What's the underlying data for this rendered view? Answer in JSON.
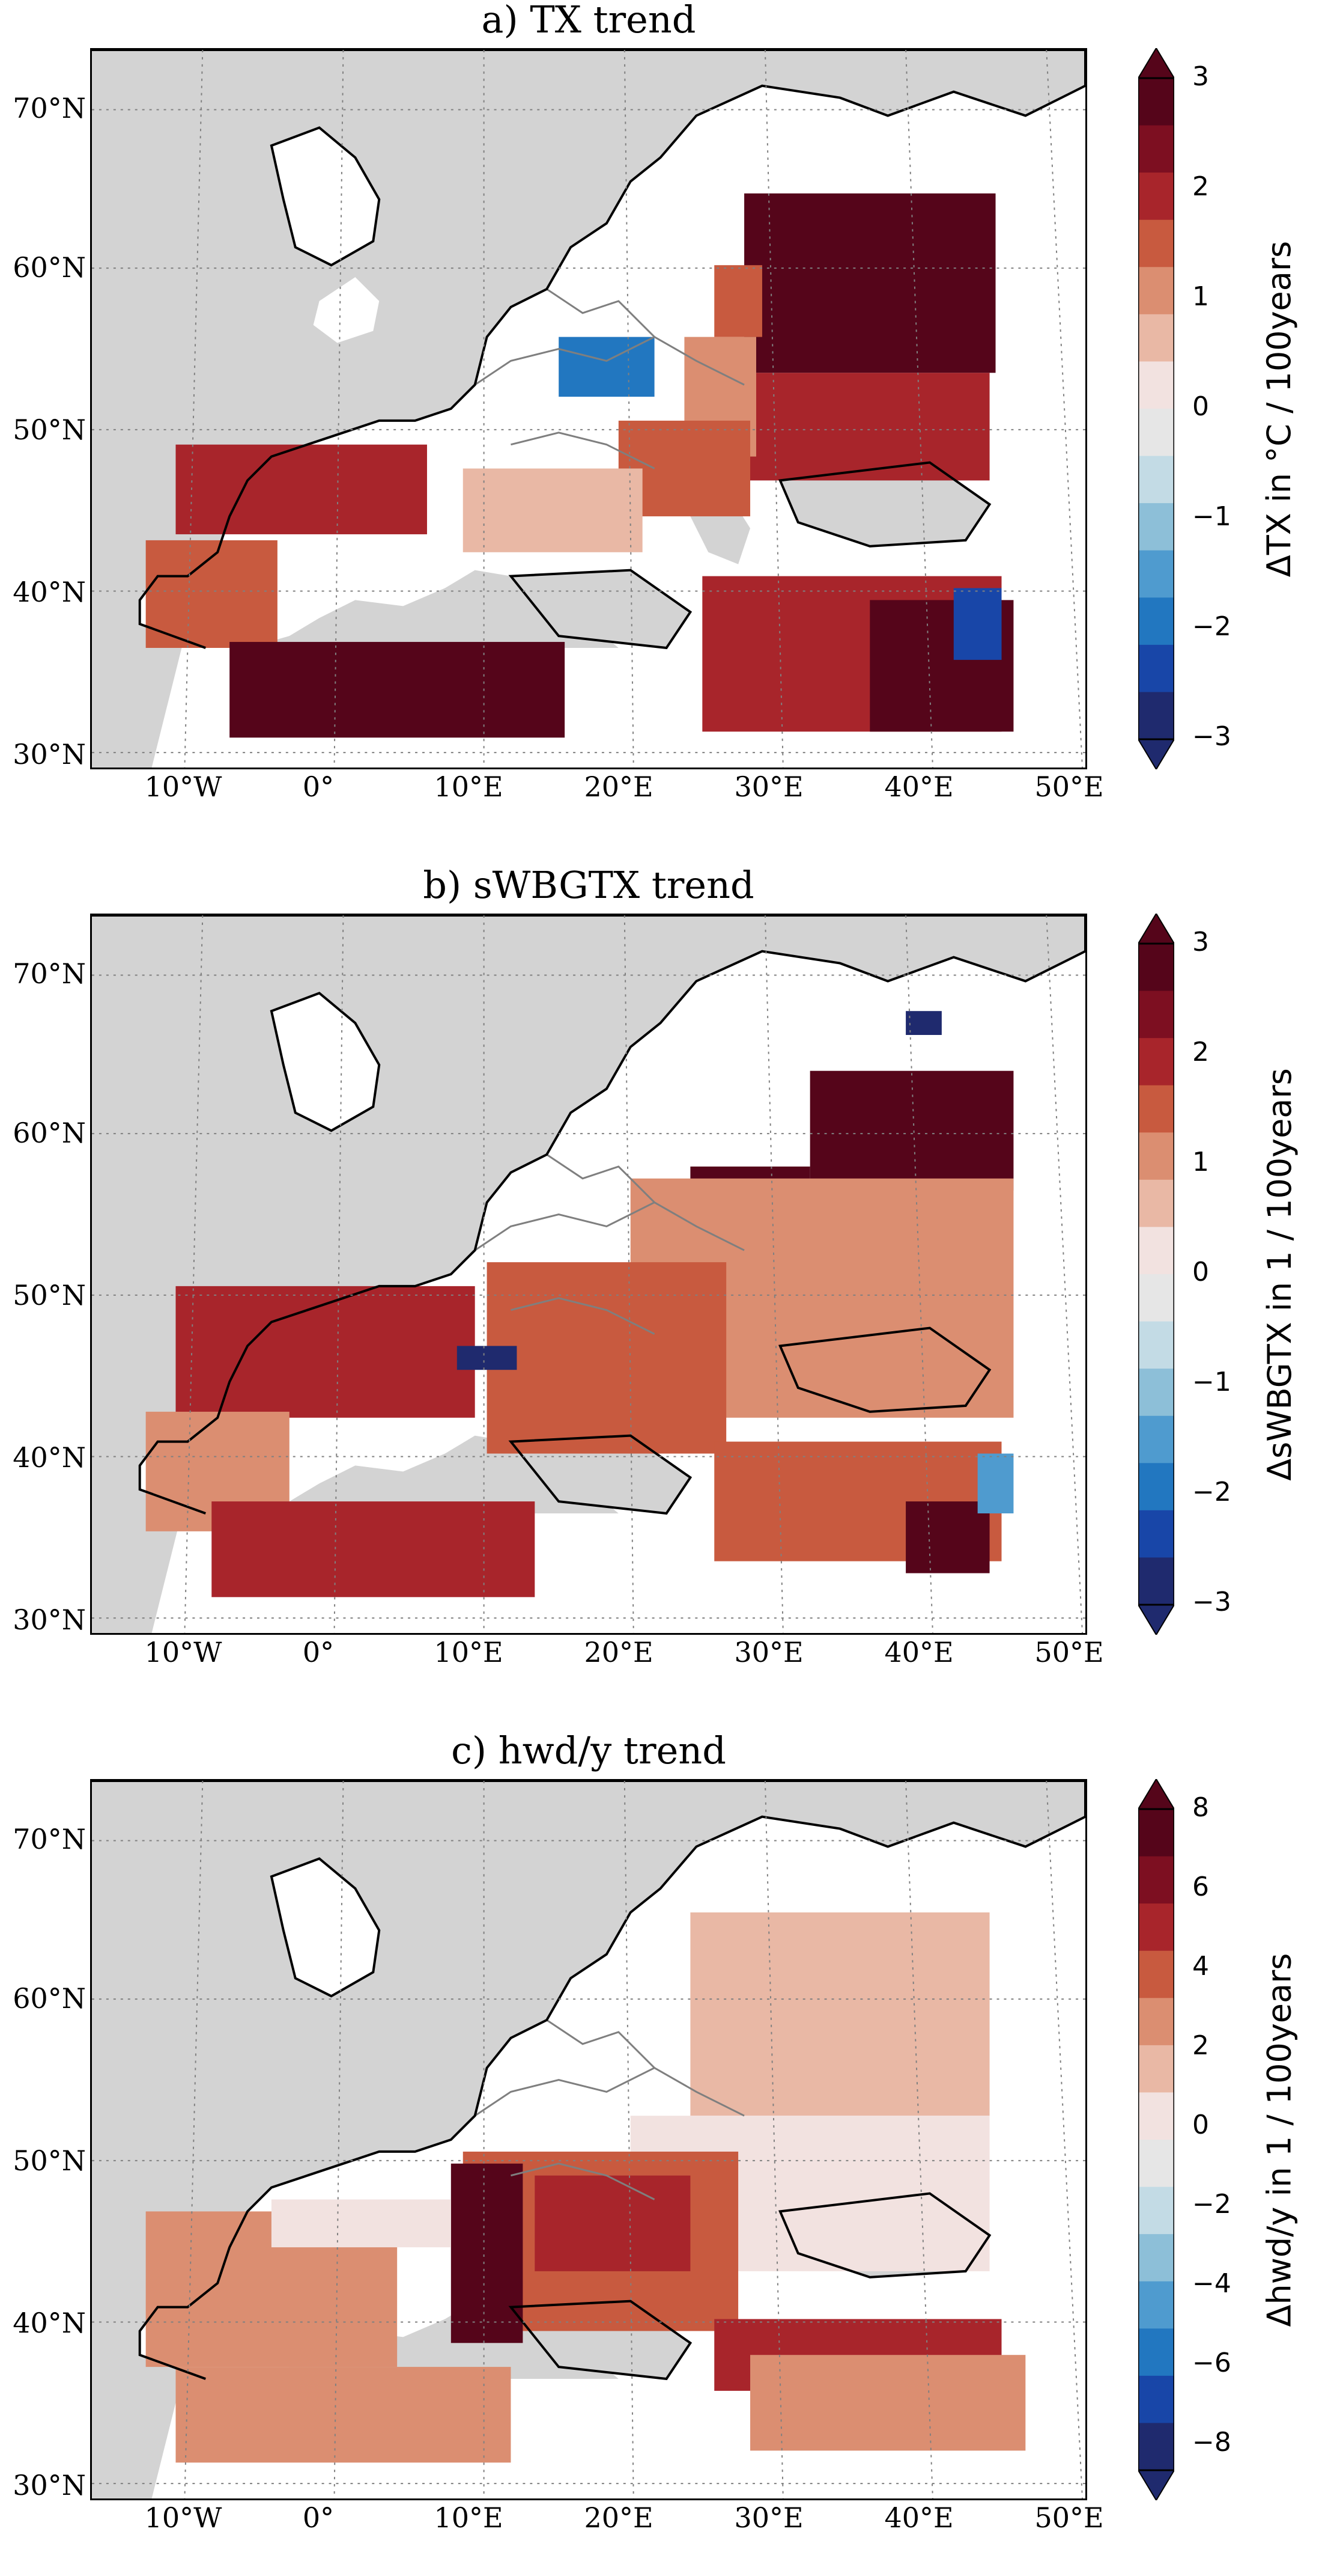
{
  "colors": {
    "ocean": "#d3d3d3",
    "land": "#ffffff",
    "coast": "#000000",
    "border": "#7f7f7f",
    "grid": "#808080"
  },
  "colorscale": [
    "#1f2a6e",
    "#1846a8",
    "#2277c0",
    "#4f9bcf",
    "#8dbfd8",
    "#c3dbe5",
    "#e6e6e6",
    "#f2e2e0",
    "#e9b8a5",
    "#db8e71",
    "#c85a3f",
    "#a8252b",
    "#7d0f21",
    "#55051a"
  ],
  "panels": [
    {
      "title": "a) TX trend",
      "cbar_ticks": [
        "3",
        "2",
        "1",
        "0",
        "−1",
        "−2",
        "−3"
      ],
      "cbar_label": "ΔTX in °C / 100years",
      "lat_labels": [
        "70°N",
        "60°N",
        "50°N",
        "40°N",
        "30°N"
      ],
      "lon_labels": [
        "10°W",
        "0°",
        "10°E",
        "20°E",
        "30°E",
        "40°E",
        "50°E"
      ]
    },
    {
      "title": "b) sWBGTX trend",
      "cbar_ticks": [
        "3",
        "2",
        "1",
        "0",
        "−1",
        "−2",
        "−3"
      ],
      "cbar_label": "ΔsWBGTX in 1 / 100years",
      "lat_labels": [
        "70°N",
        "60°N",
        "50°N",
        "40°N",
        "30°N"
      ],
      "lon_labels": [
        "10°W",
        "0°",
        "10°E",
        "20°E",
        "30°E",
        "40°E",
        "50°E"
      ]
    },
    {
      "title": "c) hwd/y trend",
      "cbar_ticks": [
        "8",
        "6",
        "4",
        "2",
        "0",
        "−2",
        "−4",
        "−6",
        "−8"
      ],
      "cbar_label": "Δhwd/y in 1 / 100years",
      "lat_labels": [
        "70°N",
        "60°N",
        "50°N",
        "40°N",
        "30°N"
      ],
      "lon_labels": [
        "10°W",
        "0°",
        "10°E",
        "20°E",
        "30°E",
        "40°E",
        "50°E"
      ]
    }
  ]
}
